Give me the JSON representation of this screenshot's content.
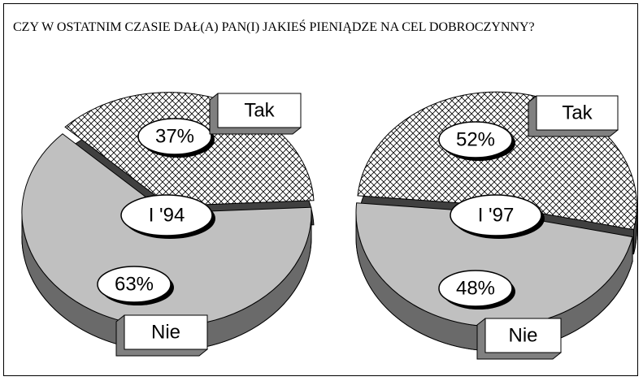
{
  "title": "CZY W OSTATNIM CZASIE DAŁ(A) PAN(I) JAKIEŚ PIENIĄDZE NA CEL DOBROCZYNNY?",
  "chart_data": [
    {
      "type": "pie",
      "center_label": "I '94",
      "categories": [
        "Tak",
        "Nie"
      ],
      "values": [
        37,
        63
      ],
      "value_labels": [
        "37%",
        "63%"
      ],
      "colors": [
        "#ffffff",
        "#c0c0c0"
      ]
    },
    {
      "type": "pie",
      "center_label": "I '97",
      "categories": [
        "Tak",
        "Nie"
      ],
      "values": [
        52,
        48
      ],
      "value_labels": [
        "52%",
        "48%"
      ],
      "colors": [
        "#ffffff",
        "#c0c0c0"
      ]
    }
  ]
}
